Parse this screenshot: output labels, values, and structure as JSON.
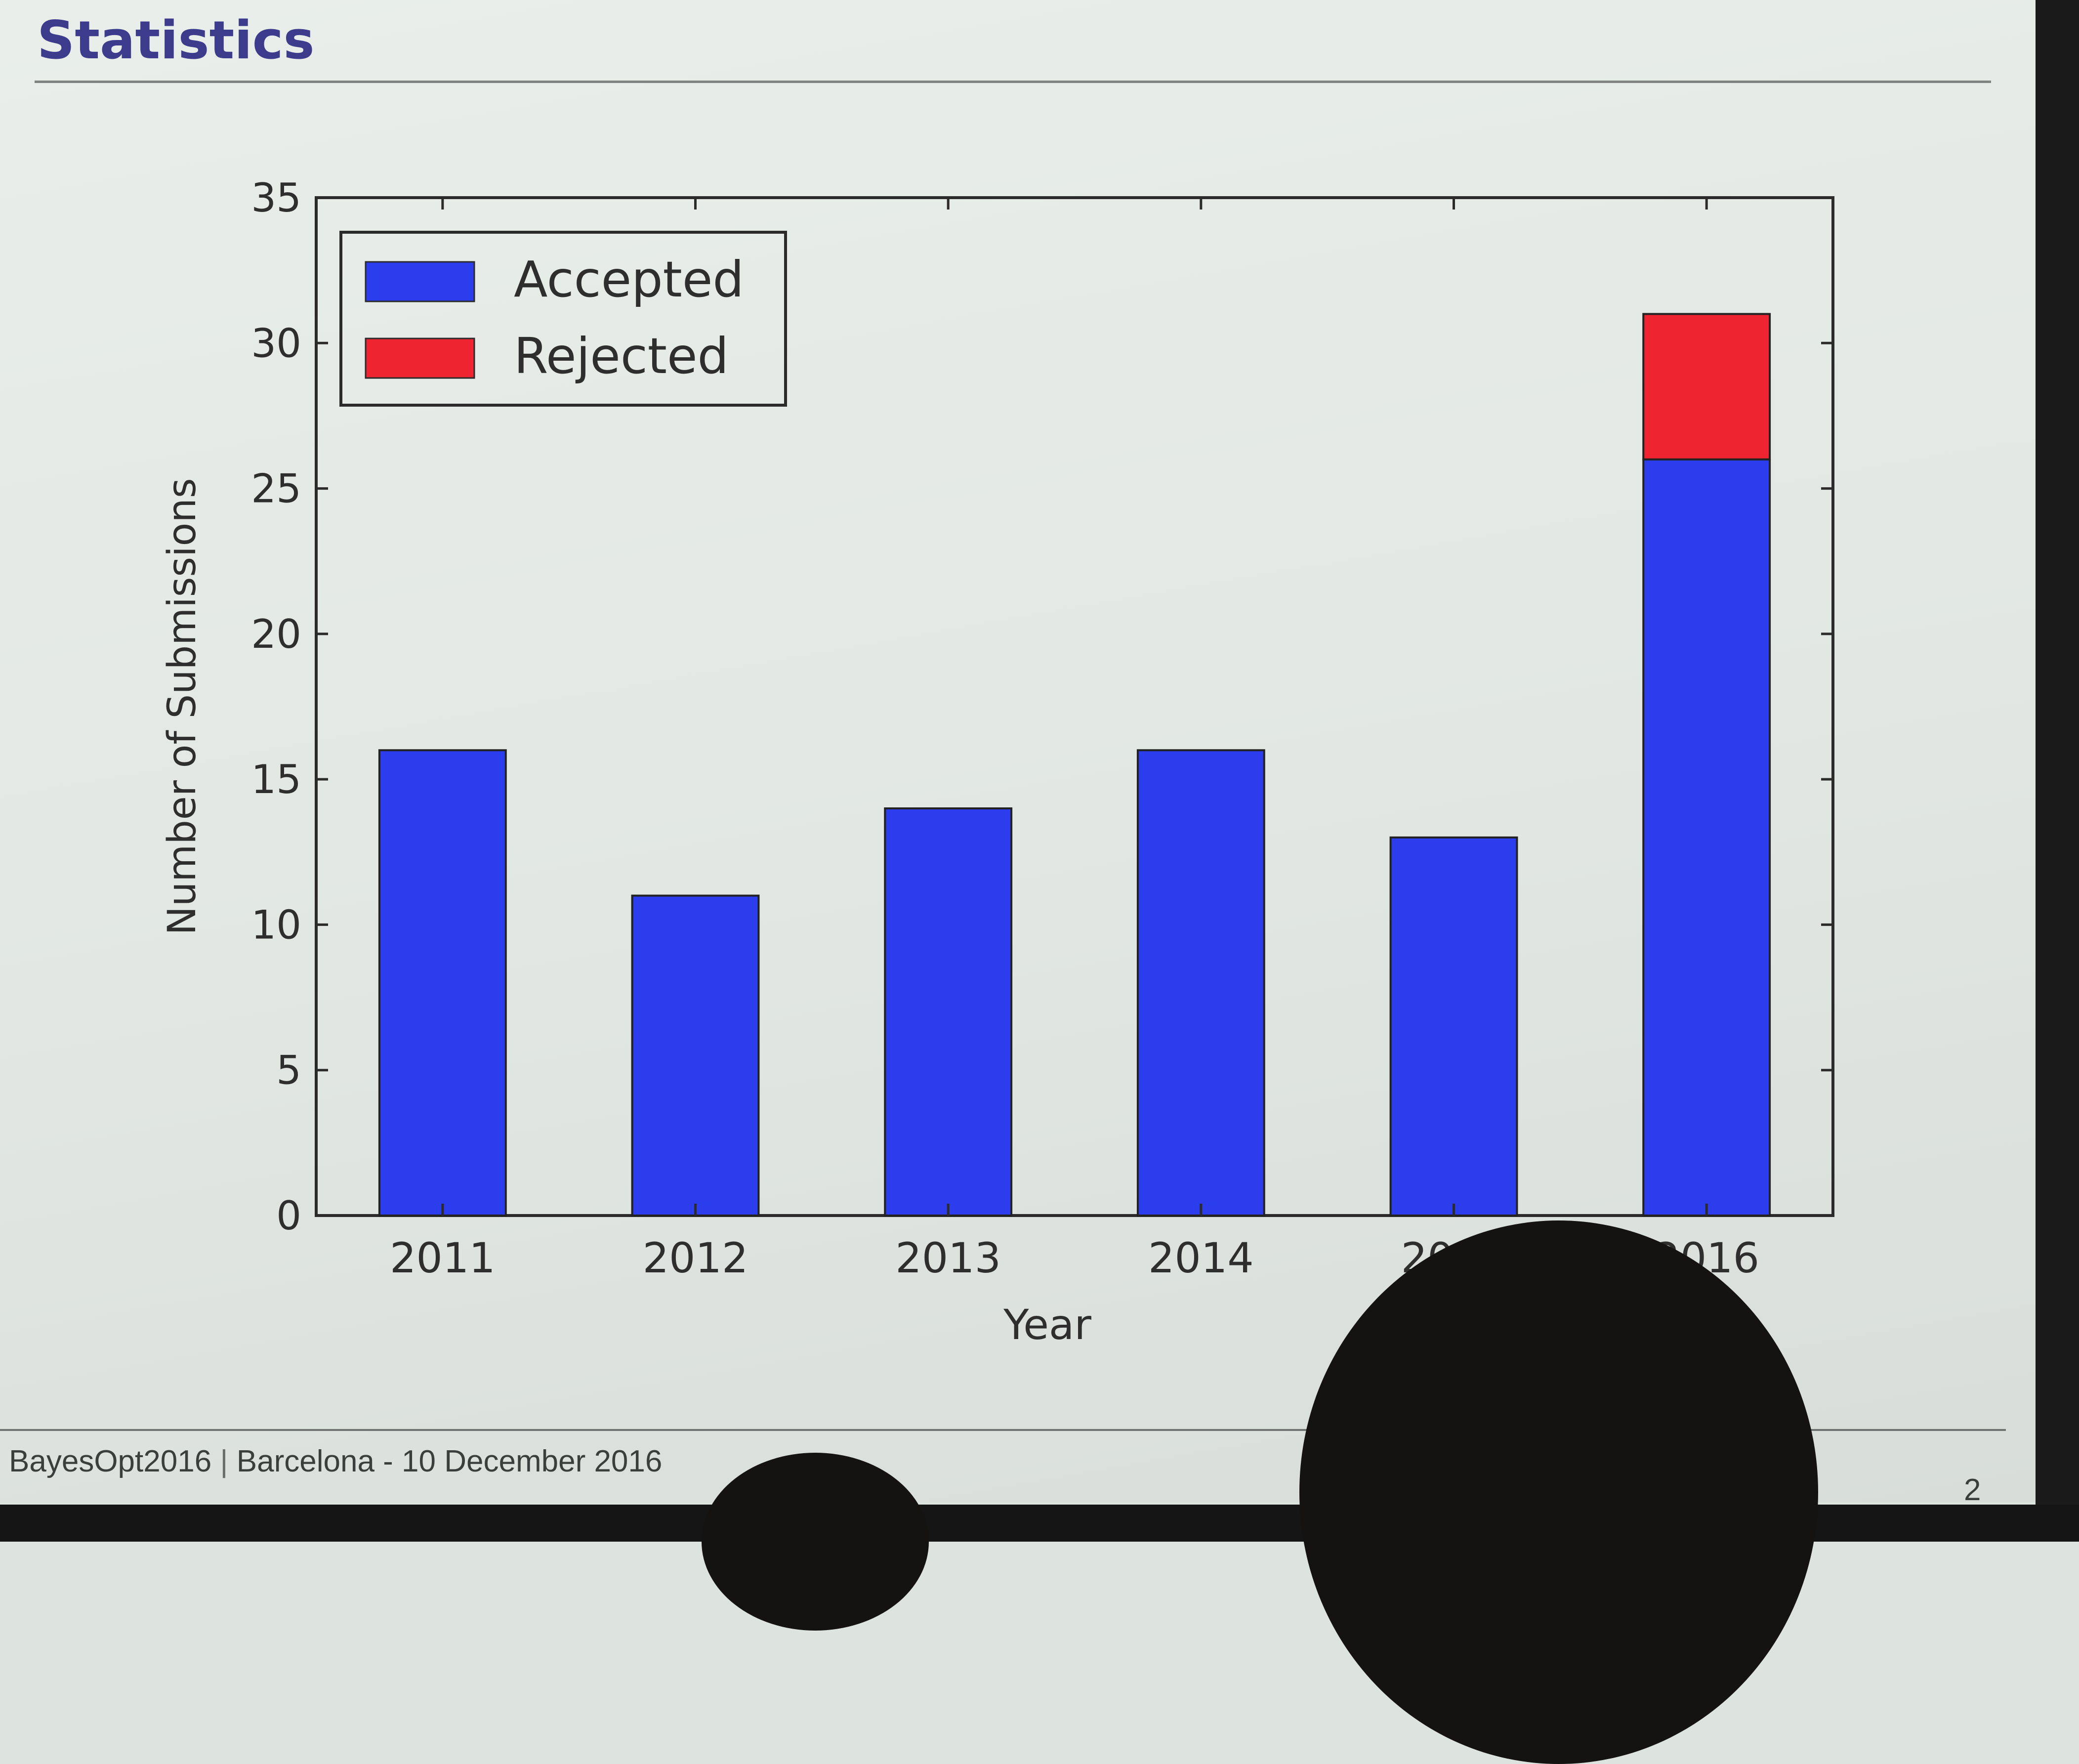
{
  "slide": {
    "title": "Statistics",
    "footer_event": "BayesOpt2016",
    "footer_separator": "|",
    "footer_location_date": "Barcelona - 10 December 2016",
    "page_number": "2"
  },
  "chart_data": {
    "type": "bar",
    "stacked": true,
    "categories": [
      "2011",
      "2012",
      "2013",
      "2014",
      "2015",
      "2016"
    ],
    "series": [
      {
        "name": "Accepted",
        "color": "#2b3ded",
        "values": [
          16,
          11,
          14,
          16,
          13,
          26
        ]
      },
      {
        "name": "Rejected",
        "color": "#ee2530",
        "values": [
          0,
          0,
          0,
          0,
          0,
          5
        ]
      }
    ],
    "xlabel": "Year",
    "ylabel": "Number of Submissions",
    "ylim": [
      0,
      35
    ],
    "yticks": [
      0,
      5,
      10,
      15,
      20,
      25,
      30,
      35
    ],
    "grid": false,
    "legend_position": "top-left"
  }
}
